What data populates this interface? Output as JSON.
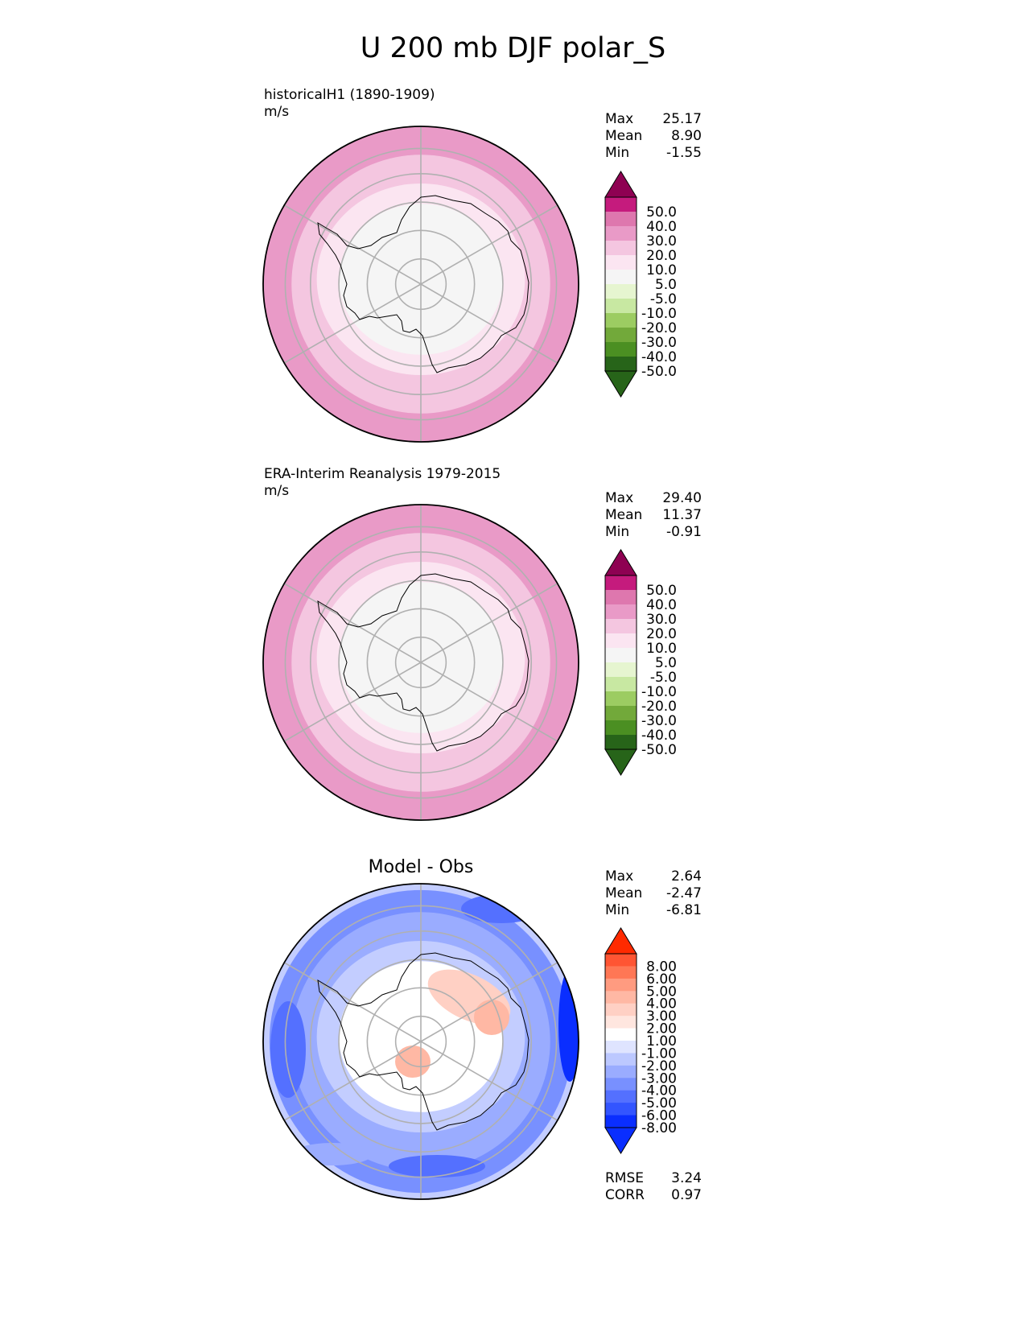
{
  "figure": {
    "title": "U 200 mb DJF polar_S"
  },
  "chart_data": [
    {
      "type": "heatmap",
      "projection": "south polar stereographic",
      "title": "historicalH1 (1890-1909)",
      "units": "m/s",
      "stats": {
        "max_label": "Max",
        "max": "25.17",
        "mean_label": "Mean",
        "mean": "8.90",
        "min_label": "Min",
        "min": "-1.55"
      },
      "colorbar": {
        "colormap": "PiYG (pink-green)",
        "extend": "both",
        "tick_labels": [
          "50.0",
          "40.0",
          "30.0",
          "20.0",
          "10.0",
          "5.0",
          "-5.0",
          "-10.0",
          "-20.0",
          "-30.0",
          "-40.0",
          "-50.0"
        ],
        "colors": [
          "#8e0152",
          "#c51b7d",
          "#de77ae",
          "#e99ac7",
          "#f4c6e0",
          "#fbe5f1",
          "#f5f5f5",
          "#e6f5d0",
          "#c8e8a2",
          "#9ccc62",
          "#72a93a",
          "#4b8f22",
          "#276419",
          "#276419"
        ]
      },
      "field_description": "zonal wind bands: weakest over Antarctica, increasing equatorward",
      "rings": [
        {
          "level": "10.0 to 20.0",
          "color": "#e99ac7"
        },
        {
          "level": "5.0 to 10.0",
          "color": "#f4c6e0"
        },
        {
          "level": "-5.0 to 5.0",
          "color": "#fbe5f1"
        },
        {
          "level": "core",
          "color": "#f5f5f5"
        }
      ]
    },
    {
      "type": "heatmap",
      "projection": "south polar stereographic",
      "title": "ERA-Interim Reanalysis 1979-2015",
      "units": "m/s",
      "stats": {
        "max_label": "Max",
        "max": "29.40",
        "mean_label": "Mean",
        "mean": "11.37",
        "min_label": "Min",
        "min": "-0.91"
      },
      "colorbar": {
        "colormap": "PiYG (pink-green)",
        "extend": "both",
        "tick_labels": [
          "50.0",
          "40.0",
          "30.0",
          "20.0",
          "10.0",
          "5.0",
          "-5.0",
          "-10.0",
          "-20.0",
          "-30.0",
          "-40.0",
          "-50.0"
        ],
        "colors": [
          "#8e0152",
          "#c51b7d",
          "#de77ae",
          "#e99ac7",
          "#f4c6e0",
          "#fbe5f1",
          "#f5f5f5",
          "#e6f5d0",
          "#c8e8a2",
          "#9ccc62",
          "#72a93a",
          "#4b8f22",
          "#276419",
          "#276419"
        ]
      },
      "rings": [
        {
          "level": "10.0 to 20.0",
          "color": "#e99ac7"
        },
        {
          "level": "5.0 to 10.0",
          "color": "#f4c6e0"
        },
        {
          "level": "-5.0 to 5.0",
          "color": "#fbe5f1"
        },
        {
          "level": "core",
          "color": "#f5f5f5"
        }
      ]
    },
    {
      "type": "heatmap",
      "projection": "south polar stereographic",
      "title": "Model - Obs",
      "units": "",
      "stats": {
        "max_label": "Max",
        "max": "2.64",
        "mean_label": "Mean",
        "mean": "-2.47",
        "min_label": "Min",
        "min": "-6.81"
      },
      "metrics": {
        "rmse_label": "RMSE",
        "rmse": "3.24",
        "corr_label": "CORR",
        "corr": "0.97"
      },
      "colorbar": {
        "colormap": "bwr (blue-white-red)",
        "extend": "both",
        "tick_labels": [
          "8.00",
          "6.00",
          "5.00",
          "4.00",
          "3.00",
          "2.00",
          "1.00",
          "-1.00",
          "-2.00",
          "-3.00",
          "-4.00",
          "-5.00",
          "-6.00",
          "-8.00"
        ],
        "colors": [
          "#ff2a00",
          "#ff5533",
          "#ff7755",
          "#ff9b80",
          "#ffb8a4",
          "#ffd0c4",
          "#ffe6df",
          "#ffffff",
          "#dfe4ff",
          "#bcc8ff",
          "#9aacff",
          "#7890ff",
          "#5470ff",
          "#3355ff",
          "#0a2eff",
          "#0a2eff"
        ]
      },
      "rings": [
        {
          "level": "-3.00 to -4.00",
          "color": "#7890ff"
        },
        {
          "level": "-2.00 to -3.00",
          "color": "#9aacff"
        },
        {
          "level": "-1.00 to -2.00",
          "color": "#c3cdff"
        },
        {
          "level": "core",
          "color": "#ffffff"
        }
      ]
    }
  ]
}
